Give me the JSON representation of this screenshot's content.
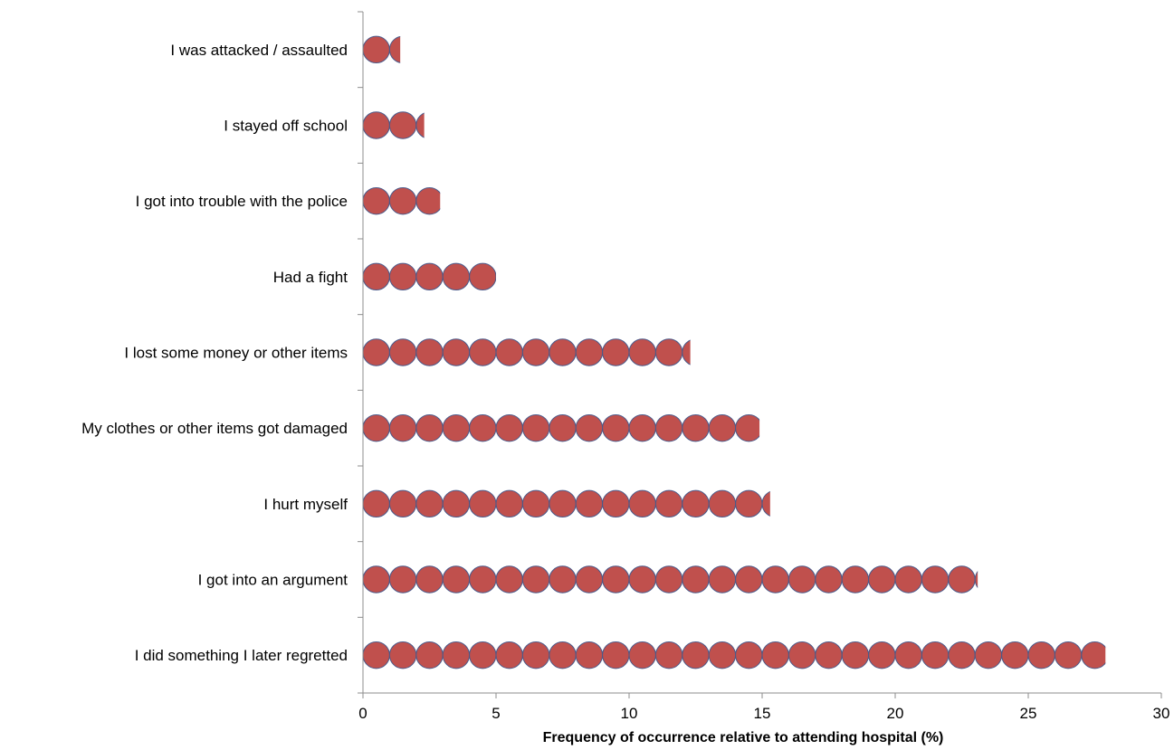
{
  "chart_data": {
    "type": "bar",
    "orientation": "horizontal",
    "style": "pictogram-circles",
    "xlabel": "Frequency of occurrence relative to attending hospital (%)",
    "xlim": [
      0,
      30
    ],
    "xticks": [
      0,
      5,
      10,
      15,
      20,
      25,
      30
    ],
    "grid": false,
    "categories": [
      "I was attacked / assaulted",
      "I stayed off school",
      "I got into trouble with the police",
      "Had a fight",
      "I lost some money or other items",
      "My clothes or other items got damaged",
      "I hurt myself",
      "I got into an argument",
      "I did something I later regretted"
    ],
    "values": [
      1.4,
      2.3,
      2.9,
      5.0,
      12.3,
      14.9,
      15.3,
      23.1,
      27.9
    ],
    "colors": {
      "marker_fill": "#c0504d",
      "marker_stroke": "#4a5a8a"
    }
  }
}
